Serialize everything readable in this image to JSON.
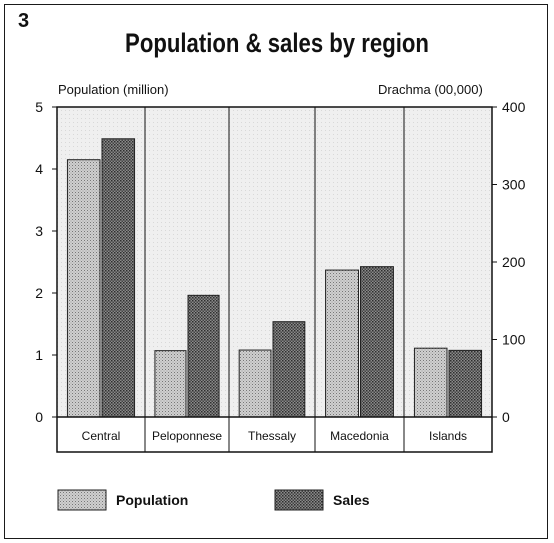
{
  "figure_number": "3",
  "chart_data": {
    "type": "bar",
    "title": "Population & sales by region",
    "categories": [
      "Central",
      "Peloponnese",
      "Thessaly",
      "Macedonia",
      "Islands"
    ],
    "series": [
      {
        "name": "Population",
        "axis": "left",
        "values": [
          4.15,
          1.07,
          1.08,
          2.37,
          1.11
        ],
        "pattern": "light-stipple"
      },
      {
        "name": "Sales",
        "axis": "right",
        "values": [
          359,
          157,
          123,
          194,
          86
        ],
        "pattern": "dark-crosshatch"
      }
    ],
    "y_left": {
      "label": "Population (million)",
      "range": [
        0,
        5
      ],
      "ticks": [
        0,
        1,
        2,
        3,
        4,
        5
      ]
    },
    "y_right": {
      "label": "Drachma (00,000)",
      "range": [
        0,
        400
      ],
      "ticks": [
        0,
        100,
        200,
        300,
        400
      ]
    },
    "grid": false,
    "legend_placement": "bottom"
  },
  "colors": {
    "plot_background": "#ececec",
    "population_fill": "#bdbdbd",
    "sales_fill": "#6f6f6f",
    "ink": "#111111"
  }
}
